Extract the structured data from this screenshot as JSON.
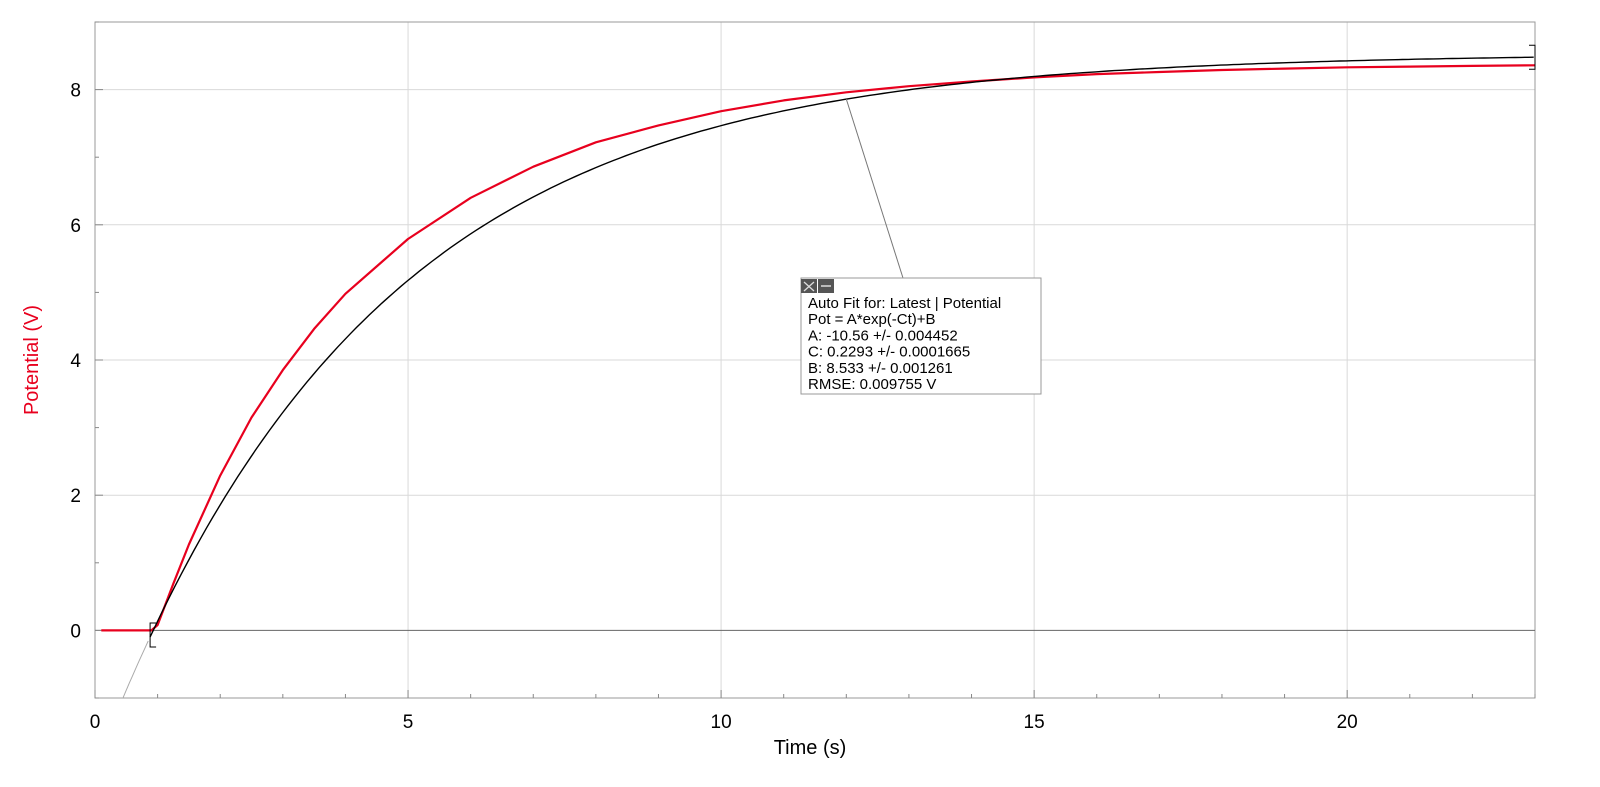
{
  "chart_data": {
    "type": "line",
    "xlabel": "Time (s)",
    "ylabel": "Potential (V)",
    "xlim": [
      0,
      23
    ],
    "ylim": [
      -1,
      9
    ],
    "x_ticks": [
      0,
      5,
      10,
      15,
      20
    ],
    "y_ticks": [
      0,
      2,
      4,
      6,
      8
    ],
    "grid": true,
    "colors": {
      "data": "#e8001e",
      "fit": "#000000",
      "ylabel": "#e8001e",
      "grid": "#d9d9d9"
    },
    "series": [
      {
        "name": "Latest | Potential",
        "x": [
          0.1,
          0.5,
          0.9,
          1.0,
          1.25,
          1.5,
          2.0,
          2.5,
          3.0,
          3.5,
          4.0,
          5.0,
          6.0,
          7.0,
          8.0,
          9.0,
          10.0,
          11.0,
          12.0,
          13.0,
          14.0,
          15.0,
          16.0,
          17.0,
          18.0,
          19.0,
          20.0,
          21.0,
          22.0,
          23.0
        ],
        "y": [
          0.0,
          0.0,
          0.0,
          0.08,
          0.69,
          1.27,
          2.29,
          3.15,
          3.85,
          4.46,
          4.98,
          5.79,
          6.4,
          6.86,
          7.22,
          7.47,
          7.68,
          7.84,
          7.96,
          8.05,
          8.12,
          8.18,
          8.23,
          8.26,
          8.29,
          8.31,
          8.33,
          8.34,
          8.35,
          8.36
        ]
      }
    ],
    "fit": {
      "model": "Pot = A*exp(-Ct)+B",
      "A": -10.56,
      "C": 0.2293,
      "B": 8.533,
      "range": [
        0.88,
        23
      ]
    },
    "annotation": {
      "lines": [
        "Auto Fit for: Latest | Potential",
        "Pot = A*exp(-Ct)+B",
        "A: -10.56 +/- 0.004452",
        "C: 0.2293 +/- 0.0001665",
        "B: 8.533 +/- 0.001261",
        "RMSE: 0.009755 V"
      ],
      "pointer_x": 12.0
    }
  }
}
